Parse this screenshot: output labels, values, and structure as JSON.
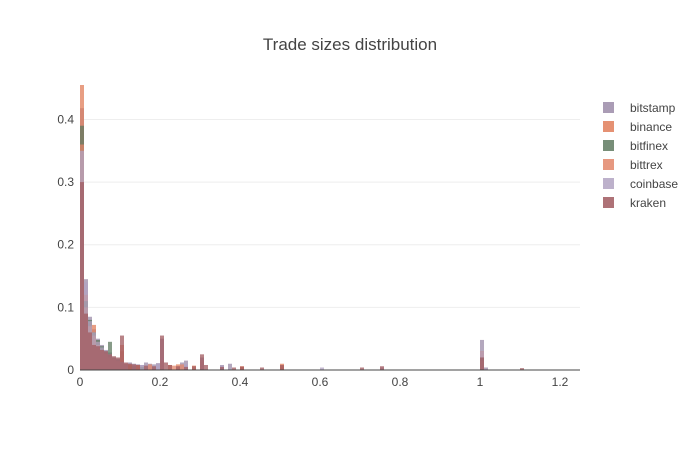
{
  "chart_data": {
    "type": "bar",
    "title": "Trade sizes distribution",
    "xlabel": "",
    "ylabel": "",
    "xlim": [
      0,
      1.25
    ],
    "ylim": [
      0,
      0.455
    ],
    "x_ticks": [
      0,
      0.2,
      0.4,
      0.6,
      0.8,
      1,
      1.2
    ],
    "x_tick_labels": [
      "0",
      "0.2",
      "0.4",
      "0.6",
      "0.8",
      "1",
      "1.2"
    ],
    "y_ticks": [
      0,
      0.1,
      0.2,
      0.3,
      0.4
    ],
    "y_tick_labels": [
      "0",
      "0.1",
      "0.2",
      "0.3",
      "0.4"
    ],
    "grid": true,
    "barmode": "overlay",
    "legend_position": "top-right",
    "series": [
      {
        "name": "bitstamp",
        "color": "#9b8ba8",
        "points": [
          [
            0.005,
            0.418
          ],
          [
            0.015,
            0.145
          ],
          [
            0.025,
            0.085
          ],
          [
            0.035,
            0.065
          ],
          [
            0.045,
            0.05
          ],
          [
            0.055,
            0.04
          ],
          [
            0.065,
            0.032
          ],
          [
            0.075,
            0.028
          ],
          [
            0.085,
            0.02
          ],
          [
            0.095,
            0.018
          ],
          [
            0.105,
            0.014
          ],
          [
            0.115,
            0.01
          ],
          [
            0.125,
            0.012
          ],
          [
            0.135,
            0.01
          ],
          [
            0.145,
            0.009
          ],
          [
            0.155,
            0.008
          ],
          [
            0.165,
            0.012
          ],
          [
            0.175,
            0.01
          ],
          [
            0.185,
            0.009
          ],
          [
            0.195,
            0.011
          ],
          [
            0.205,
            0.05
          ],
          [
            0.255,
            0.012
          ],
          [
            0.265,
            0.015
          ],
          [
            0.305,
            0.02
          ],
          [
            0.355,
            0.008
          ],
          [
            0.375,
            0.01
          ],
          [
            0.405,
            0.006
          ],
          [
            0.505,
            0.005
          ],
          [
            1.005,
            0.048
          ],
          [
            1.015,
            0.004
          ]
        ]
      },
      {
        "name": "binance",
        "color": "#e07e5a",
        "points": [
          [
            0.005,
            0.455
          ],
          [
            0.015,
            0.12
          ],
          [
            0.025,
            0.075
          ],
          [
            0.035,
            0.072
          ],
          [
            0.045,
            0.045
          ],
          [
            0.055,
            0.035
          ],
          [
            0.065,
            0.028
          ],
          [
            0.075,
            0.025
          ],
          [
            0.085,
            0.018
          ],
          [
            0.095,
            0.015
          ],
          [
            0.105,
            0.03
          ],
          [
            0.115,
            0.01
          ],
          [
            0.125,
            0.008
          ],
          [
            0.135,
            0.007
          ],
          [
            0.145,
            0.006
          ],
          [
            0.155,
            0.005
          ],
          [
            0.205,
            0.015
          ],
          [
            0.225,
            0.008
          ],
          [
            0.245,
            0.009
          ],
          [
            0.285,
            0.007
          ],
          [
            0.305,
            0.012
          ],
          [
            0.405,
            0.006
          ],
          [
            0.505,
            0.01
          ],
          [
            1.005,
            0.03
          ]
        ]
      },
      {
        "name": "bitfinex",
        "color": "#5f7a60",
        "points": [
          [
            0.005,
            0.39
          ],
          [
            0.015,
            0.11
          ],
          [
            0.025,
            0.08
          ],
          [
            0.035,
            0.06
          ],
          [
            0.045,
            0.048
          ],
          [
            0.055,
            0.038
          ],
          [
            0.065,
            0.03
          ],
          [
            0.075,
            0.045
          ],
          [
            0.085,
            0.02
          ],
          [
            0.095,
            0.016
          ],
          [
            0.105,
            0.012
          ],
          [
            0.115,
            0.009
          ],
          [
            0.125,
            0.007
          ],
          [
            0.135,
            0.006
          ],
          [
            0.155,
            0.005
          ],
          [
            0.205,
            0.01
          ],
          [
            0.305,
            0.008
          ],
          [
            1.005,
            0.02
          ]
        ]
      },
      {
        "name": "bittrex",
        "color": "#e2866a",
        "points": [
          [
            0.005,
            0.36
          ],
          [
            0.015,
            0.1
          ],
          [
            0.025,
            0.07
          ],
          [
            0.035,
            0.055
          ],
          [
            0.045,
            0.04
          ],
          [
            0.055,
            0.032
          ],
          [
            0.065,
            0.026
          ],
          [
            0.075,
            0.02
          ],
          [
            0.085,
            0.018
          ],
          [
            0.095,
            0.014
          ],
          [
            0.105,
            0.04
          ],
          [
            0.115,
            0.01
          ],
          [
            0.125,
            0.009
          ],
          [
            0.145,
            0.008
          ],
          [
            0.175,
            0.009
          ],
          [
            0.205,
            0.012
          ],
          [
            0.235,
            0.007
          ],
          [
            0.255,
            0.009
          ],
          [
            0.305,
            0.015
          ],
          [
            0.405,
            0.005
          ],
          [
            0.505,
            0.006
          ],
          [
            1.005,
            0.015
          ]
        ]
      },
      {
        "name": "coinbase",
        "color": "#b2a3c2",
        "points": [
          [
            0.005,
            0.35
          ],
          [
            0.015,
            0.14
          ],
          [
            0.025,
            0.078
          ],
          [
            0.035,
            0.06
          ],
          [
            0.045,
            0.045
          ],
          [
            0.055,
            0.036
          ],
          [
            0.065,
            0.03
          ],
          [
            0.075,
            0.025
          ],
          [
            0.085,
            0.02
          ],
          [
            0.095,
            0.016
          ],
          [
            0.105,
            0.013
          ],
          [
            0.115,
            0.01
          ],
          [
            0.135,
            0.008
          ],
          [
            0.155,
            0.008
          ],
          [
            0.195,
            0.01
          ],
          [
            0.205,
            0.02
          ],
          [
            0.265,
            0.01
          ],
          [
            0.305,
            0.015
          ],
          [
            0.355,
            0.007
          ],
          [
            0.605,
            0.004
          ],
          [
            0.755,
            0.004
          ],
          [
            1.005,
            0.03
          ]
        ]
      },
      {
        "name": "kraken",
        "color": "#a0595f",
        "points": [
          [
            0.005,
            0.3
          ],
          [
            0.015,
            0.09
          ],
          [
            0.025,
            0.06
          ],
          [
            0.035,
            0.04
          ],
          [
            0.045,
            0.038
          ],
          [
            0.055,
            0.032
          ],
          [
            0.065,
            0.03
          ],
          [
            0.075,
            0.025
          ],
          [
            0.085,
            0.022
          ],
          [
            0.095,
            0.02
          ],
          [
            0.105,
            0.055
          ],
          [
            0.115,
            0.012
          ],
          [
            0.125,
            0.01
          ],
          [
            0.135,
            0.009
          ],
          [
            0.145,
            0.008
          ],
          [
            0.165,
            0.007
          ],
          [
            0.185,
            0.006
          ],
          [
            0.205,
            0.055
          ],
          [
            0.215,
            0.012
          ],
          [
            0.225,
            0.008
          ],
          [
            0.245,
            0.006
          ],
          [
            0.265,
            0.005
          ],
          [
            0.285,
            0.006
          ],
          [
            0.305,
            0.025
          ],
          [
            0.315,
            0.008
          ],
          [
            0.355,
            0.005
          ],
          [
            0.385,
            0.004
          ],
          [
            0.405,
            0.005
          ],
          [
            0.455,
            0.004
          ],
          [
            0.505,
            0.008
          ],
          [
            0.705,
            0.004
          ],
          [
            0.755,
            0.006
          ],
          [
            1.005,
            0.02
          ],
          [
            1.105,
            0.003
          ]
        ]
      }
    ]
  }
}
